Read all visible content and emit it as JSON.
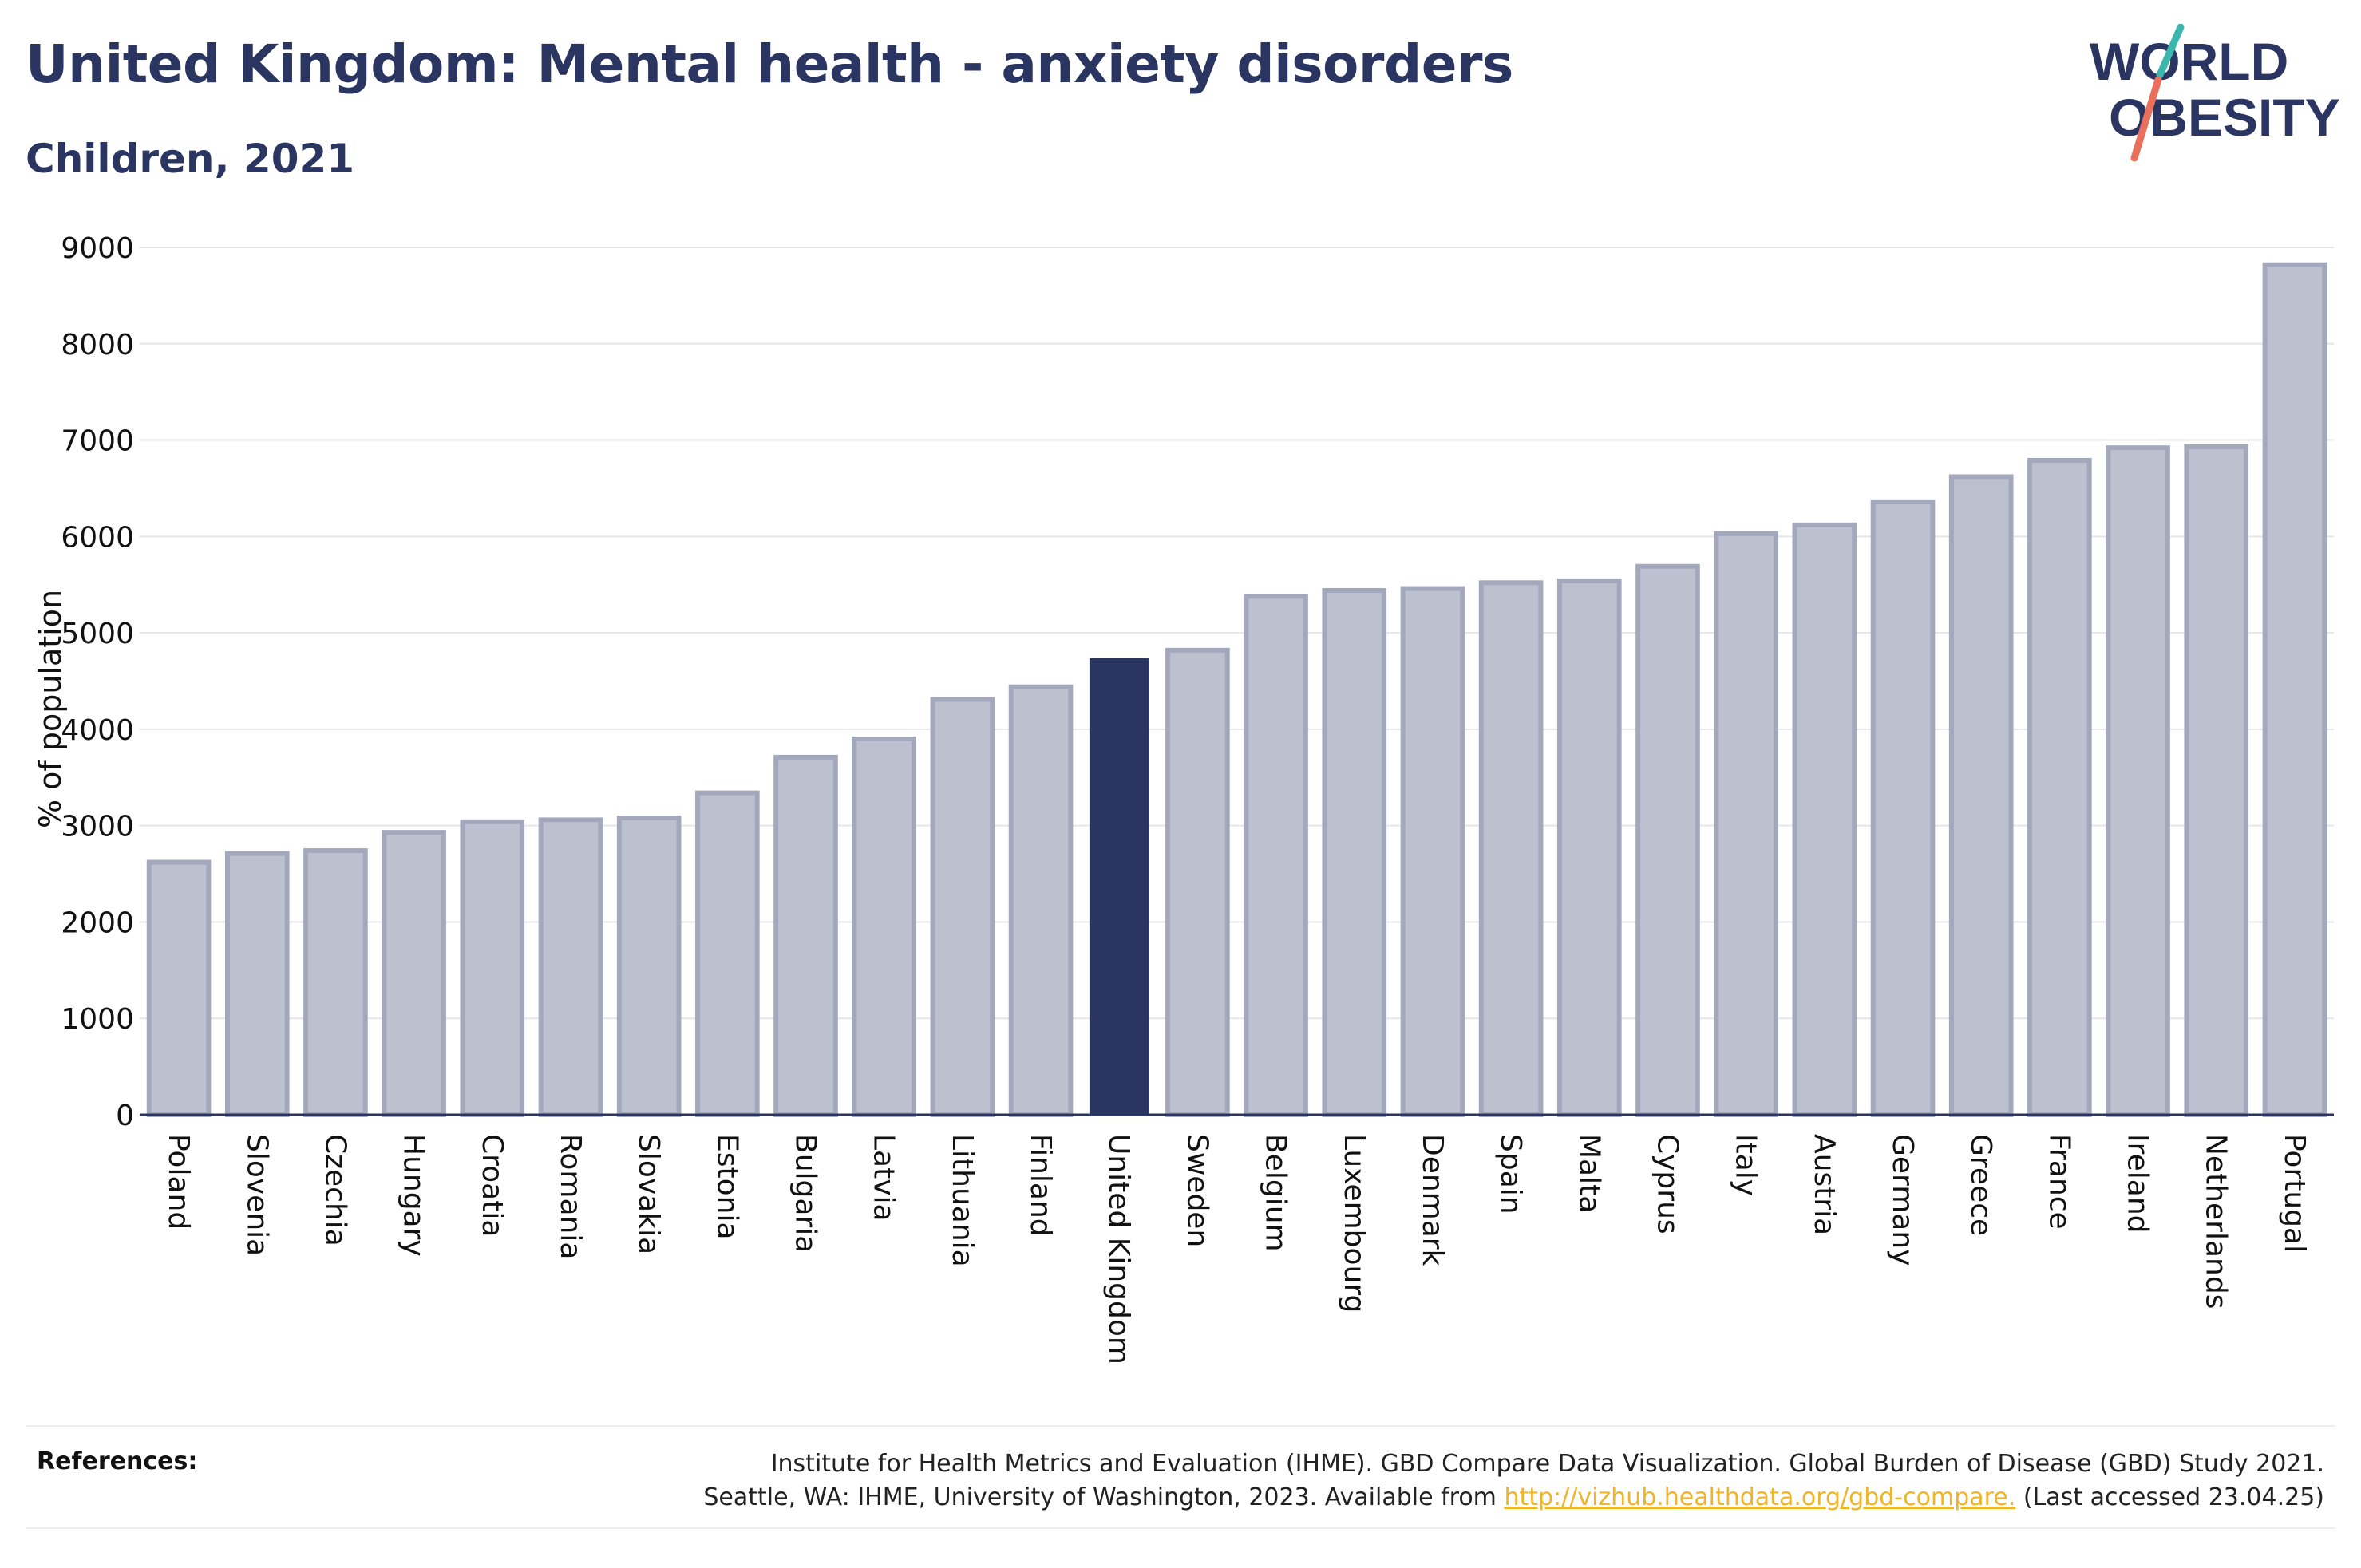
{
  "title": "United Kingdom: Mental health - anxiety disorders",
  "subtitle": "Children, 2021",
  "logo": {
    "line1": "WORLD",
    "line2": "OBESITY"
  },
  "references": {
    "label": "References:",
    "line1": "Institute for Health Metrics and Evaluation (IHME). GBD Compare Data Visualization. Global Burden of Disease (GBD) Study 2021.",
    "line2_prefix": "Seattle, WA: IHME, University of Washington, 2023. Available from ",
    "link": "http://vizhub.healthdata.org/gbd-compare.",
    "line2_suffix": " (Last accessed 23.04.25)"
  },
  "chart_data": {
    "type": "bar",
    "ylabel": "% of population",
    "ylim": [
      0,
      9000
    ],
    "yticks": [
      0,
      1000,
      2000,
      3000,
      4000,
      5000,
      6000,
      7000,
      8000,
      9000
    ],
    "grid": true,
    "highlight": "United Kingdom",
    "colors": {
      "bar": "#bdc1cf",
      "bar_edge": "#a3a8bd",
      "highlight": "#2b3561",
      "grid": "#e6e6e6",
      "axis": "#2b3561"
    },
    "categories": [
      "Poland",
      "Slovenia",
      "Czechia",
      "Hungary",
      "Croatia",
      "Romania",
      "Slovakia",
      "Estonia",
      "Bulgaria",
      "Latvia",
      "Lithuania",
      "Finland",
      "United Kingdom",
      "Sweden",
      "Belgium",
      "Luxembourg",
      "Denmark",
      "Spain",
      "Malta",
      "Cyprus",
      "Italy",
      "Austria",
      "Germany",
      "Greece",
      "France",
      "Ireland",
      "Netherlands",
      "Portugal"
    ],
    "values": [
      2620,
      2710,
      2740,
      2930,
      3040,
      3060,
      3080,
      3340,
      3710,
      3900,
      4310,
      4440,
      4740,
      4820,
      5380,
      5440,
      5460,
      5520,
      5540,
      5690,
      6030,
      6120,
      6360,
      6620,
      6790,
      6920,
      6930,
      8820
    ]
  }
}
